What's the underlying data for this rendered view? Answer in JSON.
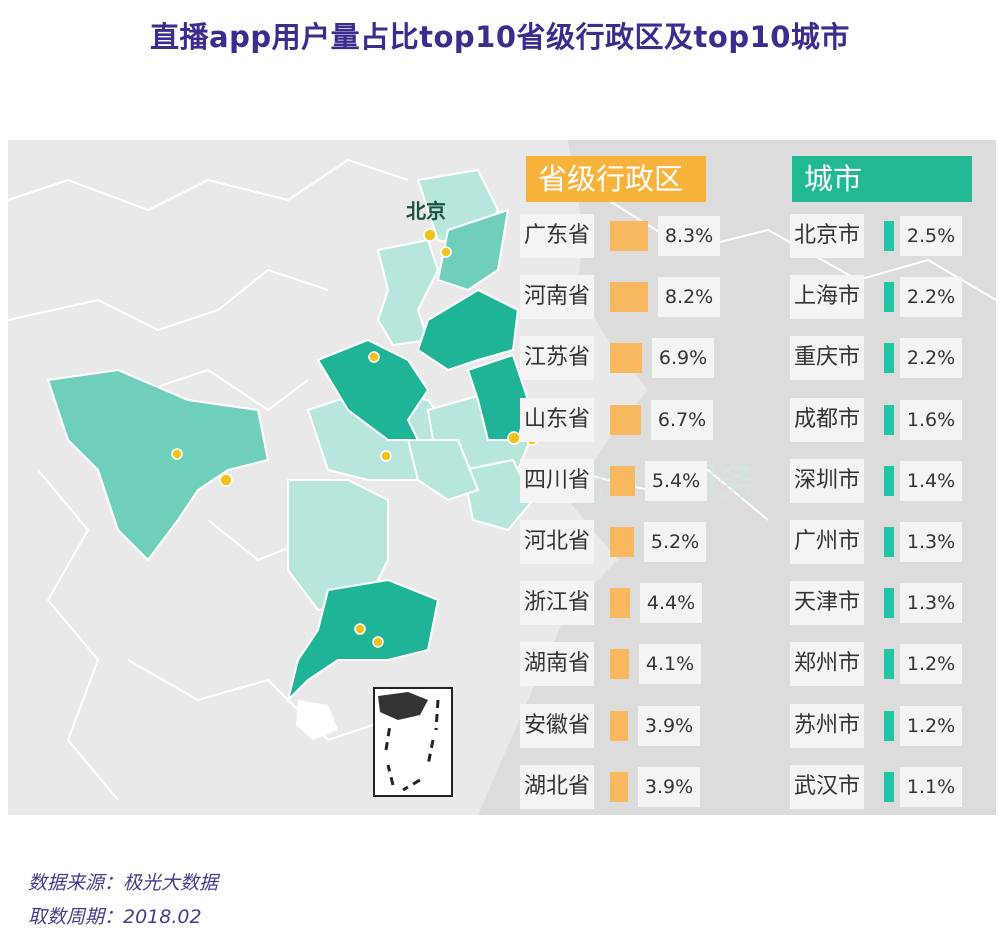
{
  "title": "直播app用户量占比top10省级行政区及top10城市",
  "map": {
    "beijing_label": "北京",
    "watermark": "极光数据服务"
  },
  "chart_data": [
    {
      "type": "bar",
      "title": "省级行政区",
      "categories": [
        "广东省",
        "河南省",
        "江苏省",
        "山东省",
        "四川省",
        "河北省",
        "浙江省",
        "湖南省",
        "安徽省",
        "湖北省"
      ],
      "values": [
        8.3,
        8.2,
        6.9,
        6.7,
        5.4,
        5.2,
        4.4,
        4.1,
        3.9,
        3.9
      ],
      "labels": [
        "8.3%",
        "8.2%",
        "6.9%",
        "6.7%",
        "5.4%",
        "5.2%",
        "4.4%",
        "4.1%",
        "3.9%",
        "3.9%"
      ],
      "color": "#f7b860"
    },
    {
      "type": "bar",
      "title": "城市",
      "categories": [
        "北京市",
        "上海市",
        "重庆市",
        "成都市",
        "深圳市",
        "广州市",
        "天津市",
        "郑州市",
        "苏州市",
        "武汉市"
      ],
      "values": [
        2.5,
        2.2,
        2.2,
        1.6,
        1.4,
        1.3,
        1.3,
        1.2,
        1.2,
        1.1
      ],
      "labels": [
        "2.5%",
        "2.2%",
        "2.2%",
        "1.6%",
        "1.4%",
        "1.3%",
        "1.3%",
        "1.2%",
        "1.2%",
        "1.1%"
      ],
      "color": "#21c4a4"
    }
  ],
  "source": {
    "line1": "数据来源：极光大数据",
    "line2": "取数周期：2018.02"
  }
}
